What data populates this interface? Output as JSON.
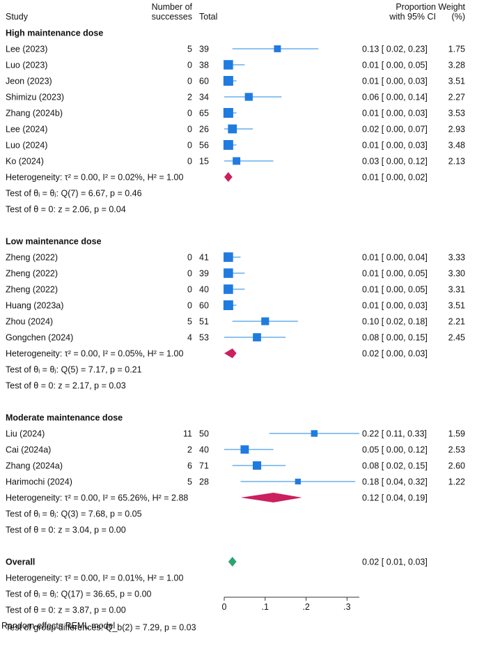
{
  "chart_data": {
    "type": "forest",
    "headers": {
      "study": "Study",
      "successes_line1": "Number of",
      "successes_line2": "successes",
      "total": "Total",
      "ci_line1": "Proportion",
      "ci_line2": "with 95% CI",
      "weight_line1": "Weight",
      "weight_line2": "(%)"
    },
    "xaxis": {
      "min": 0,
      "max": 0.33,
      "ticks": [
        0,
        0.1,
        0.2,
        0.3
      ],
      "tick_labels": [
        "0",
        ".1",
        ".2",
        ".3"
      ]
    },
    "colors": {
      "study": "#1f7be0",
      "ci": "#4a9fe8",
      "subgroup_diamond": "#cc1f5e",
      "overall_diamond": "#2aa56e"
    },
    "groups": [
      {
        "name": "High maintenance dose",
        "studies": [
          {
            "study": "Lee (2023)",
            "successes": "5",
            "total": "39",
            "est": 0.13,
            "lo": 0.02,
            "hi": 0.23,
            "ci_text": "0.13 [ 0.02,  0.23]",
            "weight": "1.75",
            "w": 1.75
          },
          {
            "study": "Luo (2023)",
            "successes": "0",
            "total": "38",
            "est": 0.01,
            "lo": 0.0,
            "hi": 0.05,
            "ci_text": "0.01 [ 0.00,  0.05]",
            "weight": "3.28",
            "w": 3.28
          },
          {
            "study": "Jeon (2023)",
            "successes": "0",
            "total": "60",
            "est": 0.01,
            "lo": 0.0,
            "hi": 0.03,
            "ci_text": "0.01 [ 0.00,  0.03]",
            "weight": "3.51",
            "w": 3.51
          },
          {
            "study": "Shimizu (2023)",
            "successes": "2",
            "total": "34",
            "est": 0.06,
            "lo": 0.0,
            "hi": 0.14,
            "ci_text": "0.06 [ 0.00,  0.14]",
            "weight": "2.27",
            "w": 2.27
          },
          {
            "study": "Zhang (2024b)",
            "successes": "0",
            "total": "65",
            "est": 0.01,
            "lo": 0.0,
            "hi": 0.03,
            "ci_text": "0.01 [ 0.00,  0.03]",
            "weight": "3.53",
            "w": 3.53
          },
          {
            "study": "Lee (2024)",
            "successes": "0",
            "total": "26",
            "est": 0.02,
            "lo": 0.0,
            "hi": 0.07,
            "ci_text": "0.02 [ 0.00,  0.07]",
            "weight": "2.93",
            "w": 2.93
          },
          {
            "study": "Luo (2024)",
            "successes": "0",
            "total": "56",
            "est": 0.01,
            "lo": 0.0,
            "hi": 0.03,
            "ci_text": "0.01 [ 0.00,  0.03]",
            "weight": "3.48",
            "w": 3.48
          },
          {
            "study": "Ko (2024)",
            "successes": "0",
            "total": "15",
            "est": 0.03,
            "lo": 0.0,
            "hi": 0.12,
            "ci_text": "0.03 [ 0.00,  0.12]",
            "weight": "2.13",
            "w": 2.13
          }
        ],
        "heterogeneity": "Heterogeneity: τ² = 0.00, I² = 0.02%, H² = 1.00",
        "pooled": {
          "est": 0.01,
          "lo": 0.0,
          "hi": 0.02,
          "ci_text": "0.01 [ 0.00,  0.02]"
        },
        "test_equal": "Test of θᵢ = θⱼ: Q(7) = 6.67, p = 0.46",
        "test_zero": "Test of θ = 0: z = 2.06, p = 0.04"
      },
      {
        "name": "Low maintenance dose",
        "studies": [
          {
            "study": "Zheng (2022)",
            "successes": "0",
            "total": "41",
            "est": 0.01,
            "lo": 0.0,
            "hi": 0.04,
            "ci_text": "0.01 [ 0.00,  0.04]",
            "weight": "3.33",
            "w": 3.33
          },
          {
            "study": "Zheng (2022)",
            "successes": "0",
            "total": "39",
            "est": 0.01,
            "lo": 0.0,
            "hi": 0.05,
            "ci_text": "0.01 [ 0.00,  0.05]",
            "weight": "3.30",
            "w": 3.3
          },
          {
            "study": "Zheng (2022)",
            "successes": "0",
            "total": "40",
            "est": 0.01,
            "lo": 0.0,
            "hi": 0.05,
            "ci_text": "0.01 [ 0.00,  0.05]",
            "weight": "3.31",
            "w": 3.31
          },
          {
            "study": "Huang (2023a)",
            "successes": "0",
            "total": "60",
            "est": 0.01,
            "lo": 0.0,
            "hi": 0.03,
            "ci_text": "0.01 [ 0.00,  0.03]",
            "weight": "3.51",
            "w": 3.51
          },
          {
            "study": "Zhou (2024)",
            "successes": "5",
            "total": "51",
            "est": 0.1,
            "lo": 0.02,
            "hi": 0.18,
            "ci_text": "0.10 [ 0.02,  0.18]",
            "weight": "2.21",
            "w": 2.21
          },
          {
            "study": "Gongchen (2024)",
            "successes": "4",
            "total": "53",
            "est": 0.08,
            "lo": 0.0,
            "hi": 0.15,
            "ci_text": "0.08 [ 0.00,  0.15]",
            "weight": "2.45",
            "w": 2.45
          }
        ],
        "heterogeneity": "Heterogeneity: τ² = 0.00, I² = 0.05%, H² = 1.00",
        "pooled": {
          "est": 0.02,
          "lo": 0.0,
          "hi": 0.03,
          "ci_text": "0.02 [ 0.00,  0.03]"
        },
        "test_equal": "Test of θᵢ = θⱼ: Q(5) = 7.17, p = 0.21",
        "test_zero": "Test of θ = 0: z = 2.17, p = 0.03"
      },
      {
        "name": "Moderate maintenance dose",
        "studies": [
          {
            "study": "Liu (2024)",
            "successes": "11",
            "total": "50",
            "est": 0.22,
            "lo": 0.11,
            "hi": 0.33,
            "ci_text": "0.22 [ 0.11,  0.33]",
            "weight": "1.59",
            "w": 1.59
          },
          {
            "study": "Cai (2024a)",
            "successes": "2",
            "total": "40",
            "est": 0.05,
            "lo": 0.0,
            "hi": 0.12,
            "ci_text": "0.05 [ 0.00,  0.12]",
            "weight": "2.53",
            "w": 2.53
          },
          {
            "study": "Zhang (2024a)",
            "successes": "6",
            "total": "71",
            "est": 0.08,
            "lo": 0.02,
            "hi": 0.15,
            "ci_text": "0.08 [ 0.02,  0.15]",
            "weight": "2.60",
            "w": 2.6
          },
          {
            "study": "Harimochi (2024)",
            "successes": "5",
            "total": "28",
            "est": 0.18,
            "lo": 0.04,
            "hi": 0.32,
            "ci_text": "0.18 [ 0.04,  0.32]",
            "weight": "1.22",
            "w": 1.22
          }
        ],
        "heterogeneity": "Heterogeneity: τ² = 0.00, I² = 65.26%, H² = 2.88",
        "pooled": {
          "est": 0.12,
          "lo": 0.04,
          "hi": 0.19,
          "ci_text": "0.12 [ 0.04,  0.19]"
        },
        "test_equal": "Test of θᵢ = θⱼ: Q(3) = 7.68, p = 0.05",
        "test_zero": "Test of θ = 0: z = 3.04, p = 0.00"
      }
    ],
    "overall": {
      "name": "Overall",
      "pooled": {
        "est": 0.02,
        "lo": 0.01,
        "hi": 0.03,
        "ci_text": "0.02 [ 0.01,  0.03]"
      },
      "heterogeneity": "Heterogeneity: τ² = 0.00, I² = 0.01%, H² = 1.00",
      "test_equal": "Test of θᵢ = θⱼ: Q(17) = 36.65, p = 0.00",
      "test_zero": "Test of θ = 0: z = 3.87, p = 0.00",
      "group_diff": "Test of group differences: Q_b(2) = 7.29, p = 0.03"
    },
    "footnote": "Random-effects REML model"
  }
}
